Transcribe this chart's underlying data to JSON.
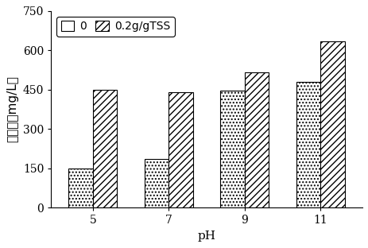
{
  "categories": [
    "5",
    "7",
    "9",
    "11"
  ],
  "series": [
    {
      "label": "0",
      "values": [
        150,
        185,
        445,
        480
      ],
      "hatch": "....",
      "facecolor": "white",
      "edgecolor": "black",
      "legend_hatch": ""
    },
    {
      "label": "0.2g/gTSS",
      "values": [
        450,
        440,
        515,
        635
      ],
      "hatch": "////",
      "facecolor": "white",
      "edgecolor": "black",
      "legend_hatch": "////"
    }
  ],
  "xlabel": "pH",
  "ylabel": "酸浓度（mg/L）",
  "ylim": [
    0,
    750
  ],
  "yticks": [
    0,
    150,
    300,
    450,
    600,
    750
  ],
  "bar_width": 0.32,
  "legend_loc": "upper left",
  "background_color": "#ffffff",
  "axis_fontsize": 11,
  "tick_fontsize": 10,
  "legend_fontsize": 10
}
